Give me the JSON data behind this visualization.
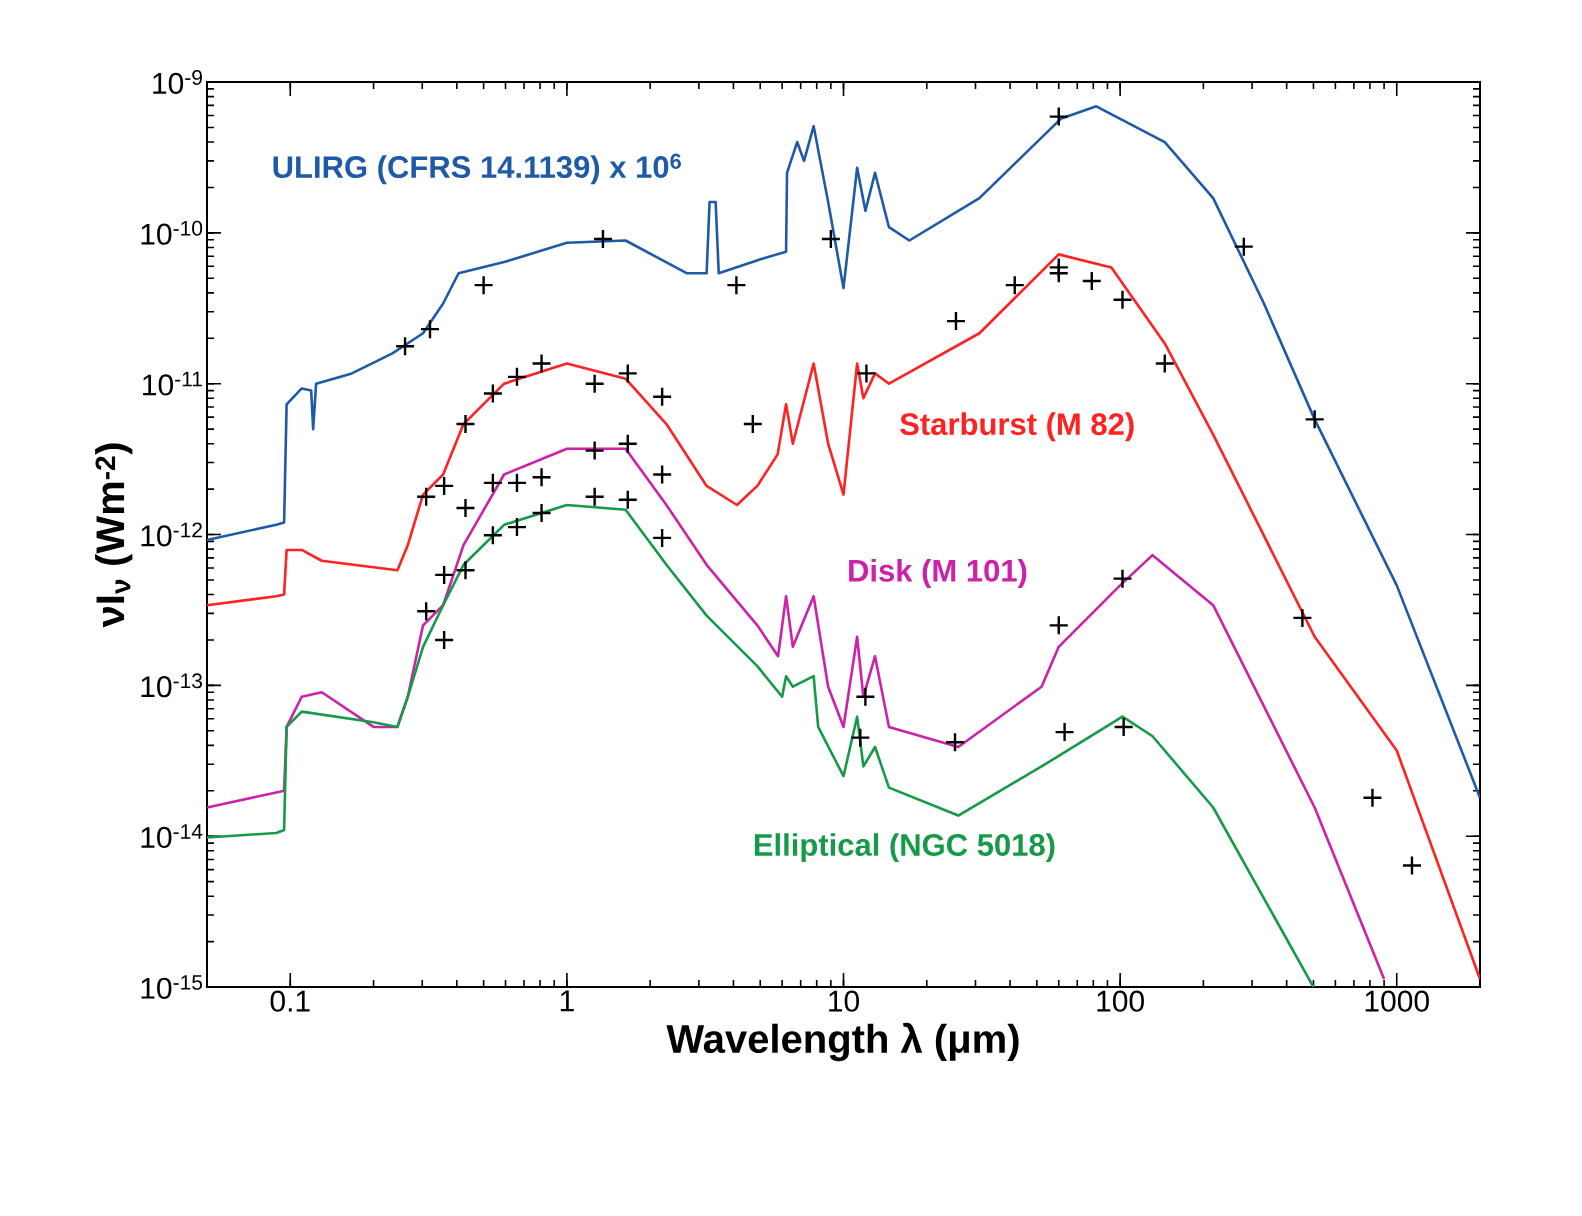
{
  "chart_data": {
    "type": "line",
    "xlabel": "Wavelength λ (μm)",
    "ylabel": "νI$_{ν}$ (Wm$^{-2}$)",
    "log": "xy",
    "xlim": [
      0.05,
      2000
    ],
    "ylim": [
      1e-15,
      1e-09
    ],
    "xticks": [
      0.1,
      1,
      10,
      100,
      1000
    ],
    "yticks": [
      {
        "value": 1e-15,
        "label": "10$^{-15}$"
      },
      {
        "value": 1e-14,
        "label": "10$^{-14}$"
      },
      {
        "value": 1e-13,
        "label": "10$^{-13}$"
      },
      {
        "value": 1e-12,
        "label": "10$^{-12}$"
      },
      {
        "value": 1e-11,
        "label": "10$^{-11}$"
      },
      {
        "value": 1e-10,
        "label": "10$^{-10}$"
      },
      {
        "value": 1e-09,
        "label": "10$^{-9}$"
      }
    ],
    "series": [
      {
        "name": "ULIRG (CFRS 14.1139) x 10$^{6}$",
        "color": "#1f5aa8",
        "x": [
          0.05,
          0.089,
          0.095,
          0.097,
          0.11,
          0.119,
          0.121,
          0.124,
          0.167,
          0.234,
          0.302,
          0.357,
          0.406,
          0.593,
          1.0,
          1.63,
          2.71,
          3.2,
          3.28,
          3.45,
          3.54,
          5.3,
          6.2,
          6.25,
          6.8,
          7.2,
          7.8,
          8.8,
          10,
          11.2,
          12,
          13,
          14.6,
          17.3,
          31,
          61,
          82,
          145,
          217,
          331,
          505,
          1000,
          2000
        ],
        "values": [
          9.2e-13,
          1.16e-12,
          1.2e-12,
          7.3e-12,
          9.3e-12,
          9e-12,
          5e-12,
          1e-11,
          1.17e-11,
          1.59e-11,
          2.16e-11,
          3.4e-11,
          5.4e-11,
          6.4e-11,
          8.6e-11,
          8.9e-11,
          5.4e-11,
          5.4e-11,
          1.6e-10,
          1.6e-10,
          5.4e-11,
          6.9e-11,
          7.5e-11,
          2.5e-10,
          4e-10,
          3e-10,
          5.1e-10,
          1.6e-10,
          4.3e-11,
          2.7e-10,
          1.4e-10,
          2.5e-10,
          1.09e-10,
          8.9e-11,
          1.7e-10,
          5.7e-10,
          6.9e-10,
          4e-10,
          1.7e-10,
          3.4e-11,
          5.8e-12,
          4.6e-13,
          1.8e-14
        ]
      },
      {
        "name": "Starburst (M 82)",
        "color": "#ff2222",
        "x": [
          0.05,
          0.089,
          0.095,
          0.097,
          0.11,
          0.13,
          0.244,
          0.266,
          0.302,
          0.357,
          0.423,
          0.593,
          1.0,
          1.63,
          2.29,
          3.2,
          4.12,
          4.88,
          5.78,
          6.2,
          6.56,
          7.8,
          8.8,
          10,
          11.2,
          11.8,
          13,
          14.6,
          31,
          60,
          93,
          145,
          217,
          505,
          1000,
          2000
        ],
        "values": [
          3.4e-13,
          3.9e-13,
          4e-13,
          7.9e-13,
          7.9e-13,
          6.7e-13,
          5.8e-13,
          8.5e-13,
          1.84e-12,
          2.5e-12,
          5.4e-12,
          1e-11,
          1.36e-11,
          1.08e-11,
          5.4e-12,
          2.1e-12,
          1.57e-12,
          2.1e-12,
          3.4e-12,
          7.3e-12,
          4e-12,
          1.36e-11,
          4e-12,
          1.84e-12,
          1.36e-11,
          8e-12,
          1.17e-11,
          1e-11,
          2.16e-11,
          7.2e-11,
          5.9e-11,
          1.85e-11,
          4.6e-12,
          2.1e-13,
          3.7e-14,
          1.13e-15
        ]
      },
      {
        "name": "Disk (M 101)",
        "color": "#cc22aa",
        "x": [
          0.05,
          0.089,
          0.095,
          0.097,
          0.11,
          0.13,
          0.2,
          0.244,
          0.266,
          0.302,
          0.357,
          0.423,
          0.593,
          1.0,
          1.63,
          2.29,
          3.2,
          4.88,
          5.8,
          6.2,
          6.56,
          7.8,
          8.8,
          10,
          11.2,
          11.8,
          13,
          14.6,
          26,
          52,
          60,
          100,
          131,
          217,
          505,
          900
        ],
        "values": [
          1.55e-14,
          1.95e-14,
          2e-14,
          5.3e-14,
          8.4e-14,
          9e-14,
          5.3e-14,
          5.3e-14,
          8.4e-14,
          2.5e-13,
          3.4e-13,
          8.5e-13,
          2.5e-12,
          3.7e-12,
          3.7e-12,
          1.57e-12,
          6.3e-13,
          2.5e-13,
          1.56e-13,
          3.9e-13,
          1.8e-13,
          3.9e-13,
          9.8e-14,
          5.3e-14,
          2.1e-13,
          8.4e-14,
          1.56e-13,
          5.3e-14,
          3.9e-14,
          9.8e-14,
          1.8e-13,
          4.6e-13,
          7.3e-13,
          3.4e-13,
          1.55e-14,
          1.13e-15
        ]
      },
      {
        "name": "Elliptical (NGC 5018)",
        "color": "#169a48",
        "x": [
          0.05,
          0.089,
          0.095,
          0.097,
          0.11,
          0.2,
          0.244,
          0.266,
          0.302,
          0.357,
          0.423,
          0.593,
          1.0,
          1.63,
          2.29,
          3.2,
          4.88,
          6.0,
          6.2,
          6.56,
          7.8,
          8.1,
          10,
          11.2,
          11.8,
          13,
          14.6,
          26,
          52,
          102,
          131,
          217,
          500
        ],
        "values": [
          9.8e-15,
          1.05e-14,
          1.1e-14,
          5.3e-14,
          6.7e-14,
          5.7e-14,
          5.3e-14,
          8.4e-14,
          1.8e-13,
          3.4e-13,
          6.3e-13,
          1.16e-12,
          1.57e-12,
          1.46e-12,
          6.3e-13,
          2.9e-13,
          1.34e-13,
          8.4e-14,
          1.15e-13,
          9.8e-14,
          1.15e-13,
          5.3e-14,
          2.5e-14,
          6.2e-14,
          2.9e-14,
          3.9e-14,
          2.1e-14,
          1.37e-14,
          2.9e-14,
          6.2e-14,
          4.6e-14,
          1.55e-14,
          1e-15
        ]
      },
      {
        "type": "scatter",
        "marker": "cross",
        "color": "#000000",
        "x": [
          60,
          1.35,
          9.0,
          280,
          0.5,
          4.1,
          0.32,
          0.26,
          25.5,
          41.6,
          60,
          60,
          79,
          102,
          145,
          505,
          0.81,
          0.66,
          0.54,
          1.26,
          1.66,
          2.21,
          0.43,
          4.7,
          12.1,
          0.31,
          0.36,
          0.43,
          0.54,
          0.66,
          0.81,
          1.26,
          1.66,
          2.21,
          0.36,
          0.43,
          0.54,
          0.66,
          0.81,
          1.26,
          1.66,
          2.21,
          0.31,
          0.36,
          60,
          102,
          25.3,
          63,
          103,
          12.0,
          11.5,
          456,
          817,
          1135
        ],
        "values": [
          5.9e-10,
          9.1e-11,
          9.1e-11,
          8.1e-11,
          4.5e-11,
          4.5e-11,
          2.3e-11,
          1.77e-11,
          2.6e-11,
          4.5e-11,
          5.9e-11,
          5.4e-11,
          4.8e-11,
          3.6e-11,
          1.36e-11,
          5.8e-12,
          1.36e-11,
          1.11e-11,
          8.6e-12,
          1e-11,
          1.17e-11,
          8.2e-12,
          5.4e-12,
          5.4e-12,
          1.17e-11,
          1.78e-12,
          2.1e-12,
          1.5e-12,
          2.2e-12,
          2.2e-12,
          2.4e-12,
          3.6e-12,
          4e-12,
          2.5e-12,
          5.4e-13,
          5.8e-13,
          9.9e-13,
          1.12e-12,
          1.39e-12,
          1.78e-12,
          1.7e-12,
          9.5e-13,
          3.1e-13,
          2e-13,
          2.5e-13,
          5.1e-13,
          4.2e-14,
          4.9e-14,
          5.3e-14,
          8.4e-14,
          4.5e-14,
          2.8e-13,
          1.8e-14,
          6.4e-15
        ]
      }
    ]
  }
}
